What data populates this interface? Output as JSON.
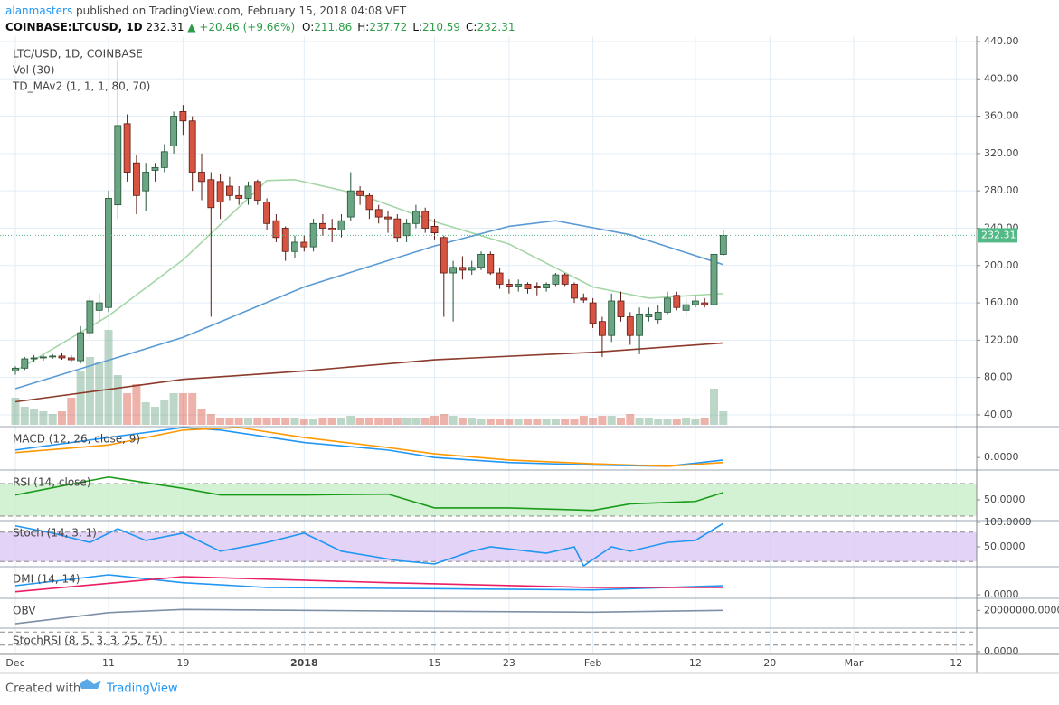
{
  "header": {
    "author": "alanmasters",
    "published": "published on TradingView.com, February 15, 2018 04:08 VET",
    "symbol": "COINBASE:LTCUSD, 1D",
    "last": "232.31",
    "arrow": "▲",
    "change": "+20.46 (+9.66%)",
    "ohlc": [
      {
        "label": "O:",
        "value": "211.86"
      },
      {
        "label": "H:",
        "value": "237.72"
      },
      {
        "label": "L:",
        "value": "210.59"
      },
      {
        "label": "C:",
        "value": "232.31"
      }
    ]
  },
  "footer": {
    "created": "Created with",
    "brand": "TradingView"
  },
  "chart_data": {
    "type": "candlestick",
    "legend": [
      "LTC/USD, 1D, COINBASE",
      "Vol (30)",
      "TD_MAv2 (1, 1, 1, 80, 70)"
    ],
    "ylim": [
      29.3,
      445.8
    ],
    "yticks": [
      {
        "value": 40,
        "label": "40.00"
      },
      {
        "value": 80,
        "label": "80.00"
      },
      {
        "value": 120,
        "label": "120.00"
      },
      {
        "value": 160,
        "label": "160.00"
      },
      {
        "value": 200,
        "label": "200.00"
      },
      {
        "value": 240,
        "label": "240.00"
      },
      {
        "value": 280,
        "label": "280.00"
      },
      {
        "value": 320,
        "label": "320.00"
      },
      {
        "value": 360,
        "label": "360.00"
      },
      {
        "value": 400,
        "label": "400.00"
      },
      {
        "value": 440,
        "label": "440.00"
      }
    ],
    "xticks": [
      {
        "value": 0,
        "label": "Dec"
      },
      {
        "value": 10,
        "label": "11"
      },
      {
        "value": 18,
        "label": "19"
      },
      {
        "value": 31,
        "label": "2018"
      },
      {
        "value": 45,
        "label": "15"
      },
      {
        "value": 53,
        "label": "23"
      },
      {
        "value": 62,
        "label": "Feb"
      },
      {
        "value": 73,
        "label": "12"
      },
      {
        "value": 81,
        "label": "20"
      },
      {
        "value": 90,
        "label": "Mar"
      },
      {
        "value": 101,
        "label": "12"
      }
    ],
    "grid": true,
    "up_color": "#6ba583",
    "down_color": "#d75442",
    "price_line": {
      "value": 232.31,
      "label": "232.31",
      "color": "#53b987"
    },
    "candles": [
      [
        87,
        92,
        83,
        90
      ],
      [
        90,
        102,
        88,
        100
      ],
      [
        100,
        104,
        97,
        101
      ],
      [
        101,
        104,
        98,
        102
      ],
      [
        102,
        105,
        100,
        103
      ],
      [
        103,
        106,
        99,
        101
      ],
      [
        101,
        104,
        96,
        99
      ],
      [
        98,
        135,
        95,
        128
      ],
      [
        128,
        168,
        122,
        162
      ],
      [
        152,
        170,
        140,
        160
      ],
      [
        155,
        280,
        150,
        272
      ],
      [
        265,
        420,
        250,
        350
      ],
      [
        352,
        362,
        290,
        300
      ],
      [
        310,
        318,
        255,
        275
      ],
      [
        280,
        310,
        258,
        300
      ],
      [
        302,
        310,
        290,
        305
      ],
      [
        305,
        330,
        300,
        322
      ],
      [
        328,
        365,
        320,
        360
      ],
      [
        365,
        372,
        340,
        355
      ],
      [
        355,
        360,
        280,
        300
      ],
      [
        300,
        320,
        270,
        290
      ],
      [
        292,
        300,
        145,
        262
      ],
      [
        290,
        298,
        250,
        268
      ],
      [
        285,
        295,
        270,
        275
      ],
      [
        275,
        285,
        265,
        272
      ],
      [
        272,
        290,
        265,
        285
      ],
      [
        290,
        292,
        265,
        270
      ],
      [
        268,
        272,
        238,
        245
      ],
      [
        248,
        255,
        225,
        230
      ],
      [
        240,
        242,
        205,
        215
      ],
      [
        215,
        232,
        208,
        225
      ],
      [
        225,
        232,
        215,
        220
      ],
      [
        220,
        250,
        215,
        245
      ],
      [
        245,
        255,
        232,
        240
      ],
      [
        240,
        250,
        225,
        238
      ],
      [
        238,
        255,
        230,
        248
      ],
      [
        252,
        300,
        248,
        280
      ],
      [
        280,
        285,
        265,
        275
      ],
      [
        275,
        278,
        250,
        260
      ],
      [
        260,
        265,
        245,
        252
      ],
      [
        252,
        258,
        235,
        250
      ],
      [
        250,
        255,
        225,
        230
      ],
      [
        232,
        250,
        225,
        245
      ],
      [
        245,
        265,
        240,
        258
      ],
      [
        258,
        262,
        235,
        240
      ],
      [
        242,
        250,
        228,
        235
      ],
      [
        230,
        232,
        145,
        192
      ],
      [
        192,
        205,
        140,
        198
      ],
      [
        198,
        210,
        185,
        195
      ],
      [
        195,
        205,
        190,
        198
      ],
      [
        198,
        215,
        195,
        212
      ],
      [
        212,
        215,
        190,
        192
      ],
      [
        192,
        198,
        175,
        180
      ],
      [
        180,
        185,
        170,
        178
      ],
      [
        178,
        185,
        172,
        180
      ],
      [
        180,
        182,
        170,
        175
      ],
      [
        178,
        182,
        168,
        176
      ],
      [
        176,
        182,
        172,
        180
      ],
      [
        180,
        192,
        178,
        190
      ],
      [
        190,
        192,
        178,
        180
      ],
      [
        180,
        182,
        160,
        165
      ],
      [
        165,
        170,
        160,
        163
      ],
      [
        160,
        165,
        133,
        138
      ],
      [
        140,
        145,
        102,
        125
      ],
      [
        125,
        170,
        118,
        162
      ],
      [
        162,
        172,
        140,
        145
      ],
      [
        145,
        150,
        115,
        125
      ],
      [
        125,
        155,
        105,
        148
      ],
      [
        145,
        155,
        140,
        148
      ],
      [
        142,
        158,
        138,
        150
      ],
      [
        150,
        172,
        148,
        165
      ],
      [
        168,
        172,
        152,
        155
      ],
      [
        152,
        165,
        145,
        158
      ],
      [
        158,
        168,
        155,
        162
      ],
      [
        160,
        165,
        155,
        158
      ],
      [
        158,
        218,
        155,
        212
      ],
      [
        211.86,
        237.72,
        210.59,
        232.31
      ]
    ],
    "volume": [
      30,
      20,
      18,
      15,
      12,
      15,
      30,
      60,
      75,
      70,
      105,
      55,
      35,
      45,
      25,
      20,
      28,
      35,
      35,
      35,
      18,
      12,
      8,
      8,
      8,
      8,
      8,
      8,
      8,
      8,
      8,
      6,
      6,
      8,
      8,
      8,
      10,
      8,
      8,
      8,
      8,
      8,
      8,
      8,
      8,
      10,
      12,
      10,
      8,
      8,
      6,
      6,
      6,
      6,
      6,
      6,
      6,
      6,
      6,
      6,
      6,
      10,
      8,
      10,
      10,
      8,
      12,
      8,
      8,
      6,
      6,
      6,
      8,
      6,
      8,
      40,
      15
    ],
    "series": [
      {
        "color": "#a5d6a7",
        "x": [
          0,
          10,
          18,
          27,
          30,
          37,
          45,
          53,
          62,
          68,
          76
        ],
        "values": [
          87,
          146,
          206,
          291,
          292,
          276,
          247,
          223,
          177,
          165,
          170
        ]
      },
      {
        "color": "#5b9bd5",
        "x": [
          0,
          18,
          31,
          45,
          53,
          58,
          66,
          76
        ],
        "values": [
          68,
          123,
          177,
          221,
          242,
          248,
          233,
          201
        ]
      },
      {
        "color": "#8b3a2b",
        "x": [
          0,
          18,
          31,
          45,
          62,
          76
        ],
        "values": [
          54,
          78,
          87,
          99,
          107,
          117
        ]
      }
    ],
    "indicators": [
      {
        "title": "MACD (12, 26, close, 9)",
        "ylim": [
          -5,
          12
        ],
        "yticks": [
          {
            "value": 0,
            "label": "0.0000"
          }
        ],
        "series": [
          {
            "color": "#2196f3",
            "x": [
              0,
              10,
              18,
              22,
              31,
              40,
              45,
              53,
              62,
              70,
              76
            ],
            "values": [
              3,
              8,
              12,
              11,
              6,
              3,
              0,
              -2,
              -3,
              -3.5,
              -1
            ]
          },
          {
            "color": "#ff9800",
            "x": [
              0,
              10,
              18,
              24,
              31,
              40,
              45,
              53,
              62,
              70,
              76
            ],
            "values": [
              2,
              5,
              11,
              12,
              8,
              4,
              1.5,
              -1,
              -2.5,
              -3.5,
              -2
            ]
          }
        ]
      },
      {
        "title": "RSI (14, close)",
        "ylim": [
          25.5,
          85.5
        ],
        "bands": [
          30,
          70
        ],
        "band_color": "#c8efc8",
        "yticks": [
          {
            "value": 50,
            "label": "50.0000"
          }
        ],
        "series": [
          {
            "color": "#1a9b1a",
            "x": [
              0,
              10,
              18,
              22,
              31,
              40,
              45,
              53,
              62,
              66,
              73,
              76
            ],
            "values": [
              56,
              78,
              64,
              56,
              56,
              57,
              40,
              40,
              37,
              45,
              48,
              59
            ]
          }
        ]
      },
      {
        "title": "Stoch (14, 3, 1)",
        "ylim": [
          11.1,
          101.8
        ],
        "bands": [
          20,
          80
        ],
        "band_color": "#dcc8f5",
        "yticks": [
          {
            "value": 100,
            "label": "100.0000"
          },
          {
            "value": 50,
            "label": "50.0000"
          }
        ],
        "series": [
          {
            "color": "#2196f3",
            "x": [
              0,
              4,
              8,
              11,
              14,
              18,
              22,
              27,
              31,
              35,
              41,
              45,
              49,
              51,
              57,
              60,
              61,
              64,
              66,
              70,
              73,
              76
            ],
            "values": [
              93,
              78,
              59,
              87,
              63,
              78,
              41,
              59,
              78,
              41,
              22,
              15,
              41,
              50,
              37,
              50,
              11,
              50,
              41,
              59,
              63,
              98
            ]
          }
        ]
      },
      {
        "title": "DMI (14, 14)",
        "ylim": [
          -6,
          45
        ],
        "yticks": [
          {
            "value": 0,
            "label": "0.0000"
          }
        ],
        "series": [
          {
            "color": "#2196f3",
            "x": [
              0,
              10,
              18,
              27,
              45,
              62,
              76
            ],
            "values": [
              15,
              33,
              20,
              12,
              10,
              8,
              15
            ]
          },
          {
            "color": "#e91e63",
            "x": [
              0,
              18,
              40,
              62,
              76
            ],
            "values": [
              5,
              30,
              20,
              12,
              12
            ]
          }
        ]
      },
      {
        "title": "OBV",
        "ylim": [
          -20000000,
          45000000
        ],
        "yticks": [
          {
            "value": 20000000,
            "label": "20000000.0000"
          }
        ],
        "series": [
          {
            "color": "#7f8fa6",
            "x": [
              0,
              10,
              18,
              31,
              45,
              62,
              76
            ],
            "values": [
              -10000000,
              15000000,
              22000000,
              20000000,
              18000000,
              16000000,
              20000000
            ]
          }
        ]
      },
      {
        "title": "StochRSI (8, 5, 3, 3, 25, 75)",
        "ylim": [
          -7,
          86
        ],
        "bands": [
          25,
          75
        ],
        "yticks": [
          {
            "value": 0,
            "label": "0.0000"
          }
        ]
      }
    ]
  }
}
